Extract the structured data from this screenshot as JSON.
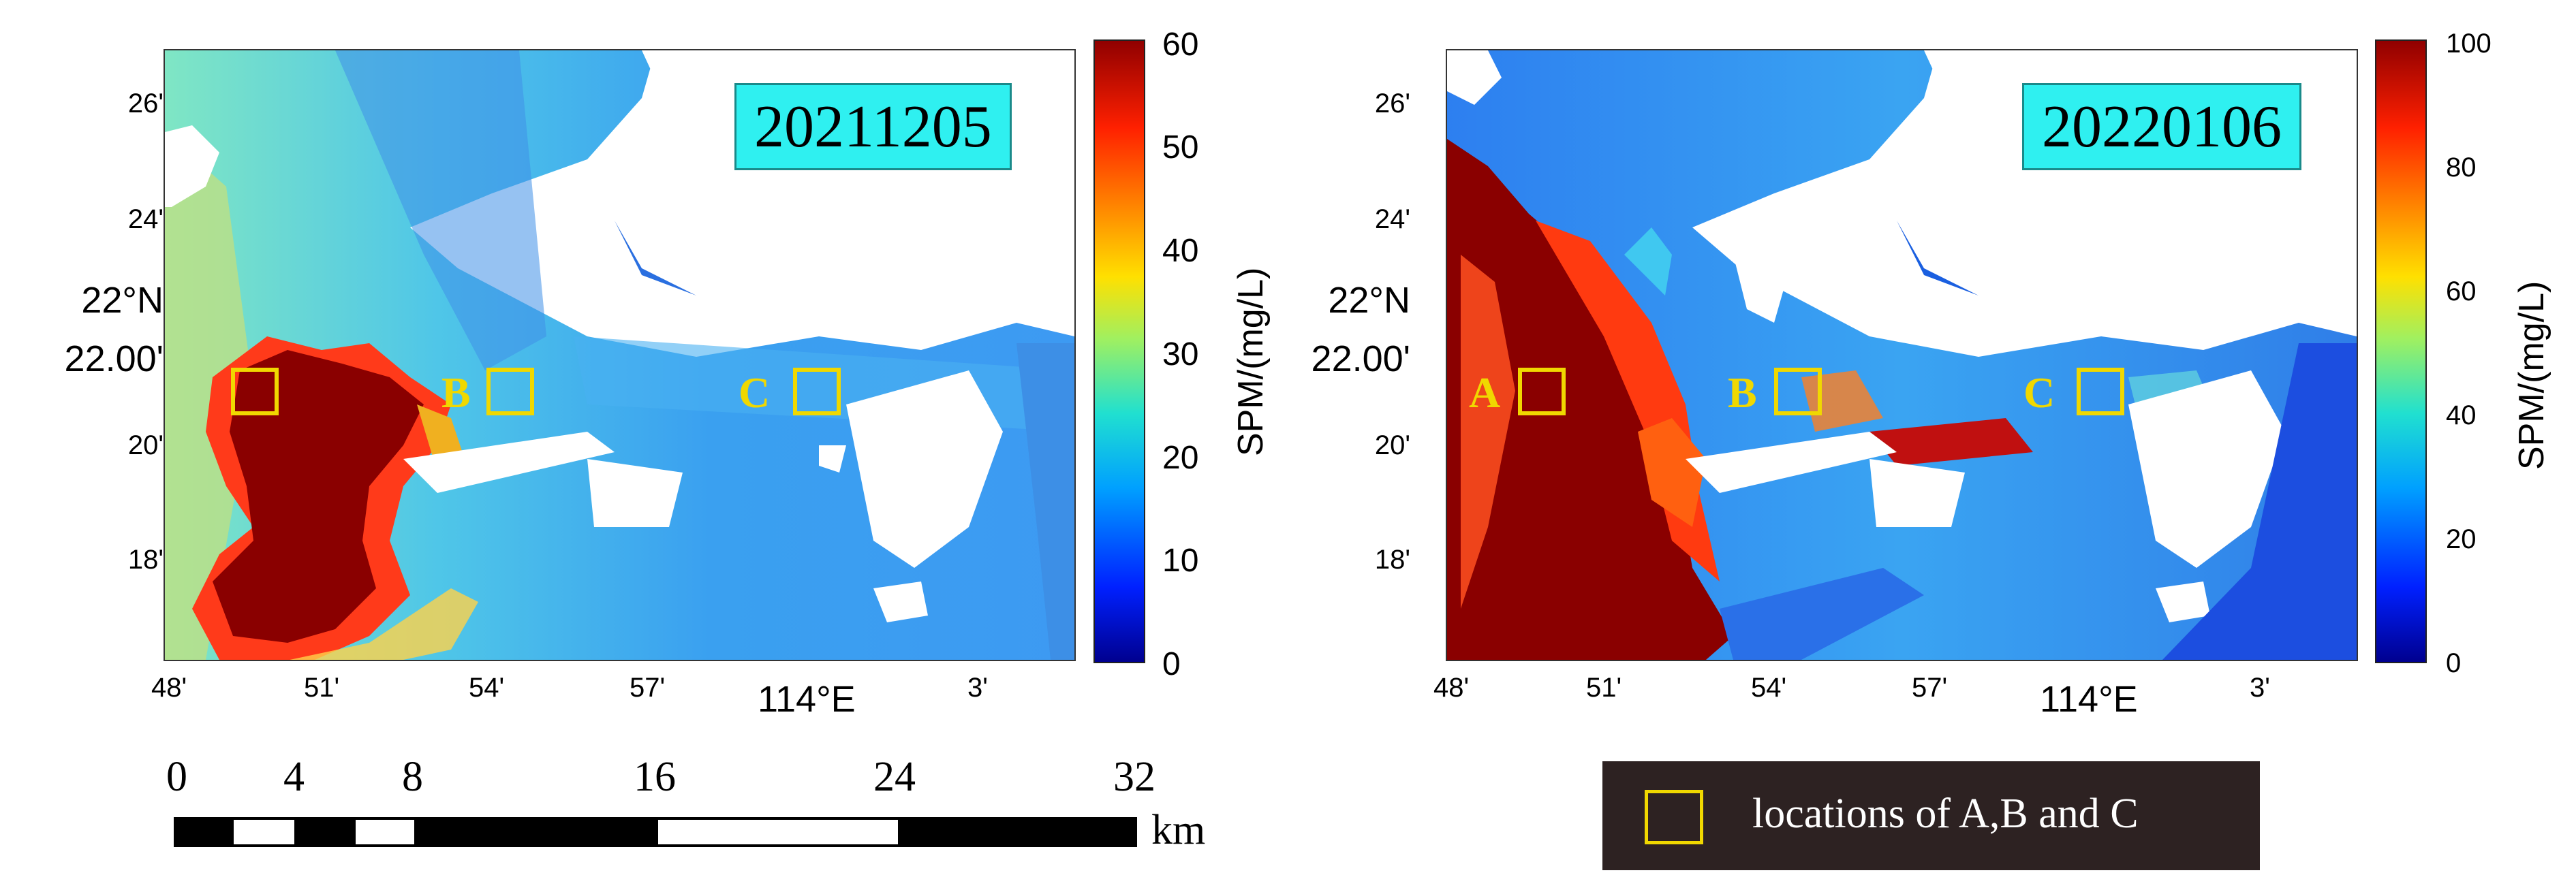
{
  "panels": [
    {
      "date": "20211205",
      "colorbar": {
        "label": "SPM/(mg/L)",
        "min": 0,
        "max": 60,
        "ticks": [
          "60",
          "50",
          "40",
          "30",
          "20",
          "10",
          "0"
        ]
      },
      "locations": [
        {
          "label": ""
        },
        {
          "label": "B"
        },
        {
          "label": "C"
        }
      ]
    },
    {
      "date": "20220106",
      "colorbar": {
        "label": "SPM/(mg/L)",
        "min": 0,
        "max": 100,
        "ticks": [
          "100",
          "80",
          "60",
          "40",
          "20",
          "0"
        ]
      },
      "locations": [
        {
          "label": "A"
        },
        {
          "label": "B"
        },
        {
          "label": "C"
        }
      ]
    }
  ],
  "axes": {
    "y_ticks": [
      "26'",
      "24'",
      "20'",
      "18'"
    ],
    "y_center_line1": "22°N",
    "y_center_line2": "22.00'",
    "x_ticks": [
      "48'",
      "51'",
      "54'",
      "57'",
      "114°E",
      "3'"
    ]
  },
  "scale_bar": {
    "numbers": [
      "0",
      "4",
      "8",
      "16",
      "24",
      "32"
    ],
    "unit": "km"
  },
  "legend": {
    "label": "locations of A,B and C"
  },
  "colors": {
    "date_box": "#2ff0f0",
    "location_marker": "#f0d800",
    "legend_background": "#2d2222",
    "land": "#ffffff"
  }
}
